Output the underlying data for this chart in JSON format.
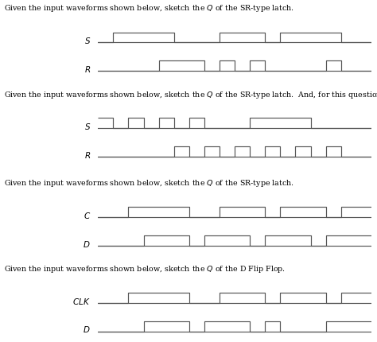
{
  "bg_color": "#ffffff",
  "text_color": "#000000",
  "line_color": "#555555",
  "title_fontsize": 6.8,
  "label_fontsize": 7.5,
  "section1": {
    "title": "Given the input waveforms shown below, sketch the $Q$ of the SR-type latch.",
    "title2": "",
    "signals": {
      "S": [
        0,
        0,
        1,
        1,
        4,
        1,
        5,
        0,
        7,
        0,
        8,
        1,
        10,
        1,
        11,
        0,
        12,
        1,
        15,
        1,
        16,
        0,
        18,
        0
      ],
      "R": [
        0,
        0,
        3,
        0,
        4,
        1,
        6,
        1,
        7,
        0,
        8,
        1,
        9,
        0,
        10,
        1,
        11,
        0,
        12,
        0,
        14,
        0,
        15,
        1,
        16,
        0,
        18,
        0
      ]
    },
    "signal_order": [
      "S",
      "R"
    ]
  },
  "section2": {
    "title": "Given the input waveforms shown below, sketch the $Q$ of the SR-type latch.  And, for this question, also sketch $\\bar{Q}$.",
    "title2": "",
    "signals": {
      "S": [
        0,
        1,
        1,
        0,
        2,
        1,
        3,
        0,
        4,
        1,
        5,
        0,
        6,
        1,
        7,
        0,
        9,
        0,
        10,
        1,
        13,
        1,
        14,
        0,
        18,
        0
      ],
      "R": [
        0,
        0,
        4,
        0,
        5,
        1,
        6,
        0,
        7,
        1,
        8,
        0,
        9,
        1,
        10,
        0,
        11,
        1,
        12,
        0,
        13,
        1,
        14,
        0,
        15,
        1,
        16,
        0,
        18,
        0
      ]
    },
    "signal_order": [
      "S",
      "R"
    ]
  },
  "section3": {
    "title": "Given the input waveforms shown below, sketch the $Q$ of the SR-type latch.",
    "title2": "",
    "signals": {
      "C": [
        0,
        0,
        2,
        1,
        5,
        1,
        6,
        0,
        8,
        1,
        10,
        1,
        11,
        0,
        12,
        1,
        14,
        1,
        15,
        0,
        16,
        1,
        18,
        1
      ],
      "D": [
        0,
        0,
        3,
        1,
        5,
        1,
        6,
        0,
        7,
        1,
        9,
        1,
        10,
        0,
        11,
        1,
        13,
        1,
        14,
        0,
        15,
        1,
        17,
        1,
        18,
        1
      ]
    },
    "signal_order": [
      "C",
      "D"
    ]
  },
  "section4": {
    "title": "Given the input waveforms shown below, sketch the $Q$ of the D Flip Flop.",
    "title2": "",
    "signals": {
      "CLK": [
        0,
        0,
        2,
        1,
        5,
        1,
        6,
        0,
        8,
        1,
        10,
        1,
        11,
        0,
        12,
        1,
        14,
        1,
        15,
        0,
        16,
        1,
        18,
        1
      ],
      "D": [
        0,
        0,
        3,
        1,
        5,
        1,
        6,
        0,
        7,
        1,
        9,
        1,
        10,
        0,
        11,
        1,
        12,
        0,
        14,
        0,
        15,
        1,
        17,
        1,
        18,
        1
      ]
    },
    "signal_order": [
      "CLK",
      "D"
    ]
  }
}
